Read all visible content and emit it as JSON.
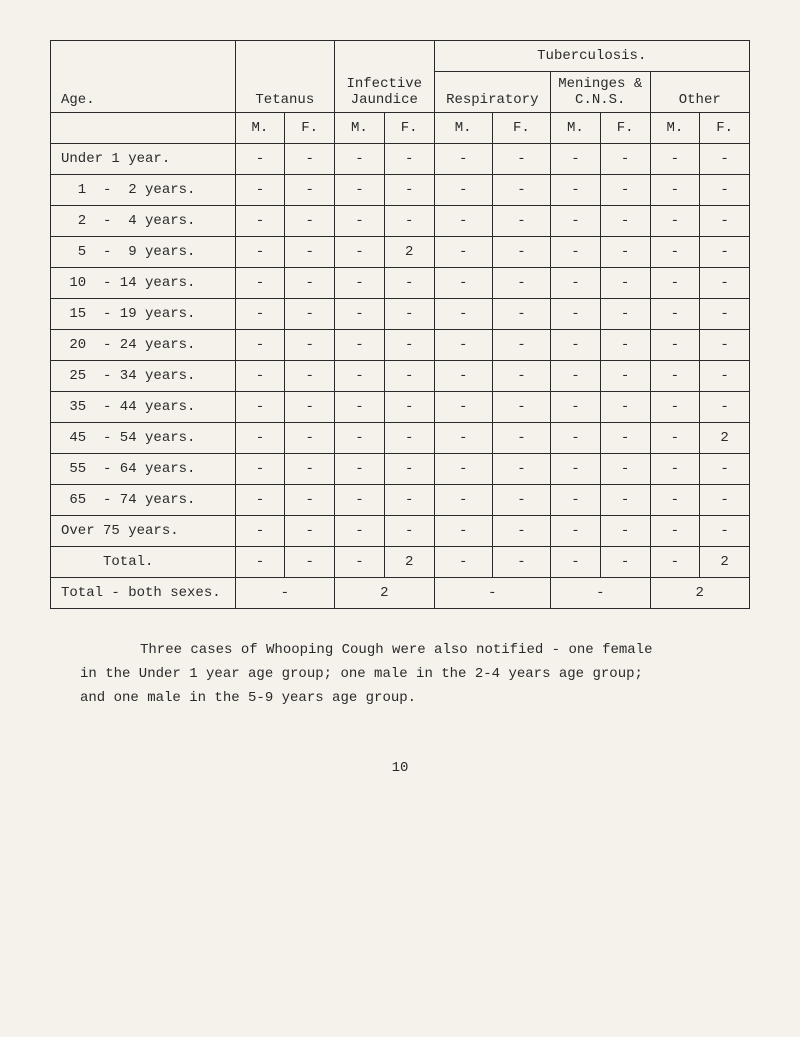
{
  "table": {
    "header": {
      "age": "Age.",
      "tetanus": "Tetanus",
      "infective_jaundice": "Infective Jaundice",
      "tuberculosis": "Tuberculosis.",
      "respiratory": "Respiratory",
      "meninges": "Meninges & C.N.S.",
      "other": "Other",
      "M": "M.",
      "F": "F."
    },
    "rows": [
      {
        "age": "Under 1 year.",
        "cells": [
          "-",
          "-",
          "-",
          "-",
          "-",
          "-",
          "-",
          "-",
          "-",
          "-"
        ]
      },
      {
        "age": "  1  -  2 years.",
        "cells": [
          "-",
          "-",
          "-",
          "-",
          "-",
          "-",
          "-",
          "-",
          "-",
          "-"
        ]
      },
      {
        "age": "  2  -  4 years.",
        "cells": [
          "-",
          "-",
          "-",
          "-",
          "-",
          "-",
          "-",
          "-",
          "-",
          "-"
        ]
      },
      {
        "age": "  5  -  9 years.",
        "cells": [
          "-",
          "-",
          "-",
          "2",
          "-",
          "-",
          "-",
          "-",
          "-",
          "-"
        ]
      },
      {
        "age": " 10  - 14 years.",
        "cells": [
          "-",
          "-",
          "-",
          "-",
          "-",
          "-",
          "-",
          "-",
          "-",
          "-"
        ]
      },
      {
        "age": " 15  - 19 years.",
        "cells": [
          "-",
          "-",
          "-",
          "-",
          "-",
          "-",
          "-",
          "-",
          "-",
          "-"
        ]
      },
      {
        "age": " 20  - 24 years.",
        "cells": [
          "-",
          "-",
          "-",
          "-",
          "-",
          "-",
          "-",
          "-",
          "-",
          "-"
        ]
      },
      {
        "age": " 25  - 34 years.",
        "cells": [
          "-",
          "-",
          "-",
          "-",
          "-",
          "-",
          "-",
          "-",
          "-",
          "-"
        ]
      },
      {
        "age": " 35  - 44 years.",
        "cells": [
          "-",
          "-",
          "-",
          "-",
          "-",
          "-",
          "-",
          "-",
          "-",
          "-"
        ]
      },
      {
        "age": " 45  - 54 years.",
        "cells": [
          "-",
          "-",
          "-",
          "-",
          "-",
          "-",
          "-",
          "-",
          "-",
          "2"
        ]
      },
      {
        "age": " 55  - 64 years.",
        "cells": [
          "-",
          "-",
          "-",
          "-",
          "-",
          "-",
          "-",
          "-",
          "-",
          "-"
        ]
      },
      {
        "age": " 65  - 74 years.",
        "cells": [
          "-",
          "-",
          "-",
          "-",
          "-",
          "-",
          "-",
          "-",
          "-",
          "-"
        ]
      },
      {
        "age": "Over 75 years.",
        "cells": [
          "-",
          "-",
          "-",
          "-",
          "-",
          "-",
          "-",
          "-",
          "-",
          "-"
        ]
      }
    ],
    "total_row": {
      "label": "     Total.",
      "cells": [
        "-",
        "-",
        "-",
        "2",
        "-",
        "-",
        "-",
        "-",
        "-",
        "2"
      ]
    },
    "both_sexes_row": {
      "label": "Total - both sexes.",
      "cells": [
        "-",
        "2",
        "-",
        "-",
        "2"
      ]
    }
  },
  "footnote": {
    "line1": "Three cases of Whooping Cough were also notified - one female",
    "line2": "in the Under 1 year age group;  one male in the 2-4 years age group;",
    "line3": "and one male in the 5-9 years age group."
  },
  "page_number": "10",
  "colors": {
    "background": "#f5f2ec",
    "text": "#2a2a2a",
    "border": "#2a2a2a"
  },
  "typography": {
    "font_family": "Courier New",
    "font_size_pt": 11,
    "line_height": 1.7
  }
}
